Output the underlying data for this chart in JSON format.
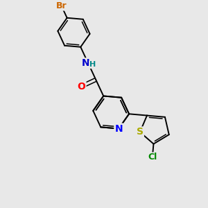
{
  "background_color": "#e8e8e8",
  "bond_color": "#000000",
  "atom_colors": {
    "N_quinoline": "#0000ff",
    "N_amide": "#0000cc",
    "O": "#ff0000",
    "S": "#aaaa00",
    "Cl": "#008800",
    "Br": "#cc6600",
    "H": "#008888"
  },
  "figsize": [
    3.0,
    3.0
  ],
  "dpi": 100
}
